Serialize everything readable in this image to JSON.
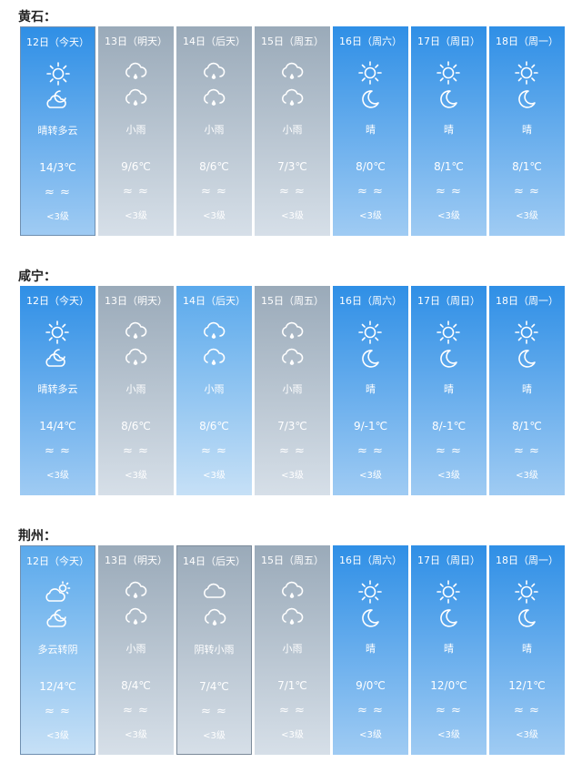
{
  "sections": [
    {
      "city": "黄石：",
      "days": [
        {
          "date": "12日（今天）",
          "icon1": "sun-icon",
          "icon2": "partly-cloudy-night-icon",
          "desc": "晴转多云",
          "temp": "14/3℃",
          "wind": "≈  ≈",
          "level": "<3级",
          "style": "blue",
          "today": true
        },
        {
          "date": "13日（明天）",
          "icon1": "rain-icon",
          "icon2": "rain-icon",
          "desc": "小雨",
          "temp": "9/6℃",
          "wind": "≈  ≈",
          "level": "<3级",
          "style": "gray"
        },
        {
          "date": "14日（后天）",
          "icon1": "rain-icon",
          "icon2": "rain-icon",
          "desc": "小雨",
          "temp": "8/6℃",
          "wind": "≈  ≈",
          "level": "<3级",
          "style": "gray"
        },
        {
          "date": "15日（周五）",
          "icon1": "rain-icon",
          "icon2": "rain-icon",
          "desc": "小雨",
          "temp": "7/3℃",
          "wind": "≈  ≈",
          "level": "<3级",
          "style": "gray"
        },
        {
          "date": "16日（周六）",
          "icon1": "sun-icon",
          "icon2": "moon-icon",
          "desc": "晴",
          "temp": "8/0℃",
          "wind": "≈  ≈",
          "level": "<3级",
          "style": "blue"
        },
        {
          "date": "17日（周日）",
          "icon1": "sun-icon",
          "icon2": "moon-icon",
          "desc": "晴",
          "temp": "8/1℃",
          "wind": "≈  ≈",
          "level": "<3级",
          "style": "blue"
        },
        {
          "date": "18日（周一）",
          "icon1": "sun-icon",
          "icon2": "moon-icon",
          "desc": "晴",
          "temp": "8/1℃",
          "wind": "≈  ≈",
          "level": "<3级",
          "style": "blue"
        }
      ]
    },
    {
      "city": "咸宁：",
      "days": [
        {
          "date": "12日（今天）",
          "icon1": "sun-icon",
          "icon2": "partly-cloudy-night-icon",
          "desc": "晴转多云",
          "temp": "14/4℃",
          "wind": "≈  ≈",
          "level": "<3级",
          "style": "blue"
        },
        {
          "date": "13日（明天）",
          "icon1": "rain-icon",
          "icon2": "rain-icon",
          "desc": "小雨",
          "temp": "8/6℃",
          "wind": "≈  ≈",
          "level": "<3级",
          "style": "gray"
        },
        {
          "date": "14日（后天）",
          "icon1": "rain-icon",
          "icon2": "rain-icon",
          "desc": "小雨",
          "temp": "8/6℃",
          "wind": "≈  ≈",
          "level": "<3级",
          "style": "lightblue"
        },
        {
          "date": "15日（周五）",
          "icon1": "rain-icon",
          "icon2": "rain-icon",
          "desc": "小雨",
          "temp": "7/3℃",
          "wind": "≈  ≈",
          "level": "<3级",
          "style": "gray"
        },
        {
          "date": "16日（周六）",
          "icon1": "sun-icon",
          "icon2": "moon-icon",
          "desc": "晴",
          "temp": "9/-1℃",
          "wind": "≈  ≈",
          "level": "<3级",
          "style": "blue"
        },
        {
          "date": "17日（周日）",
          "icon1": "sun-icon",
          "icon2": "moon-icon",
          "desc": "晴",
          "temp": "8/-1℃",
          "wind": "≈  ≈",
          "level": "<3级",
          "style": "blue"
        },
        {
          "date": "18日（周一）",
          "icon1": "sun-icon",
          "icon2": "moon-icon",
          "desc": "晴",
          "temp": "8/1℃",
          "wind": "≈  ≈",
          "level": "<3级",
          "style": "blue"
        }
      ]
    },
    {
      "city": "荆州：",
      "days": [
        {
          "date": "12日（今天）",
          "icon1": "partly-cloudy-day-icon",
          "icon2": "partly-cloudy-night-icon",
          "desc": "多云转阴",
          "temp": "12/4℃",
          "wind": "≈  ≈",
          "level": "<3级",
          "style": "lightblue",
          "today": true
        },
        {
          "date": "13日（明天）",
          "icon1": "rain-icon",
          "icon2": "rain-icon",
          "desc": "小雨",
          "temp": "8/4℃",
          "wind": "≈  ≈",
          "level": "<3级",
          "style": "gray"
        },
        {
          "date": "14日（后天）",
          "icon1": "cloud-icon",
          "icon2": "rain-icon",
          "desc": "阴转小雨",
          "temp": "7/4℃",
          "wind": "≈  ≈",
          "level": "<3级",
          "style": "gray",
          "selected": true
        },
        {
          "date": "15日（周五）",
          "icon1": "rain-icon",
          "icon2": "rain-icon",
          "desc": "小雨",
          "temp": "7/1℃",
          "wind": "≈  ≈",
          "level": "<3级",
          "style": "gray"
        },
        {
          "date": "16日（周六）",
          "icon1": "sun-icon",
          "icon2": "moon-icon",
          "desc": "晴",
          "temp": "9/0℃",
          "wind": "≈  ≈",
          "level": "<3级",
          "style": "blue"
        },
        {
          "date": "17日（周日）",
          "icon1": "sun-icon",
          "icon2": "moon-icon",
          "desc": "晴",
          "temp": "12/0℃",
          "wind": "≈  ≈",
          "level": "<3级",
          "style": "blue"
        },
        {
          "date": "18日（周一）",
          "icon1": "sun-icon",
          "icon2": "moon-icon",
          "desc": "晴",
          "temp": "12/1℃",
          "wind": "≈  ≈",
          "level": "<3级",
          "style": "blue"
        }
      ]
    }
  ],
  "colors": {
    "blue_top": "#2f8fe6",
    "blue_bottom": "#9fcbf3",
    "gray_top": "#9aaab9",
    "gray_bottom": "#d6dfe8",
    "lightblue_top": "#5aa9ec",
    "lightblue_bottom": "#c6e0f6"
  }
}
